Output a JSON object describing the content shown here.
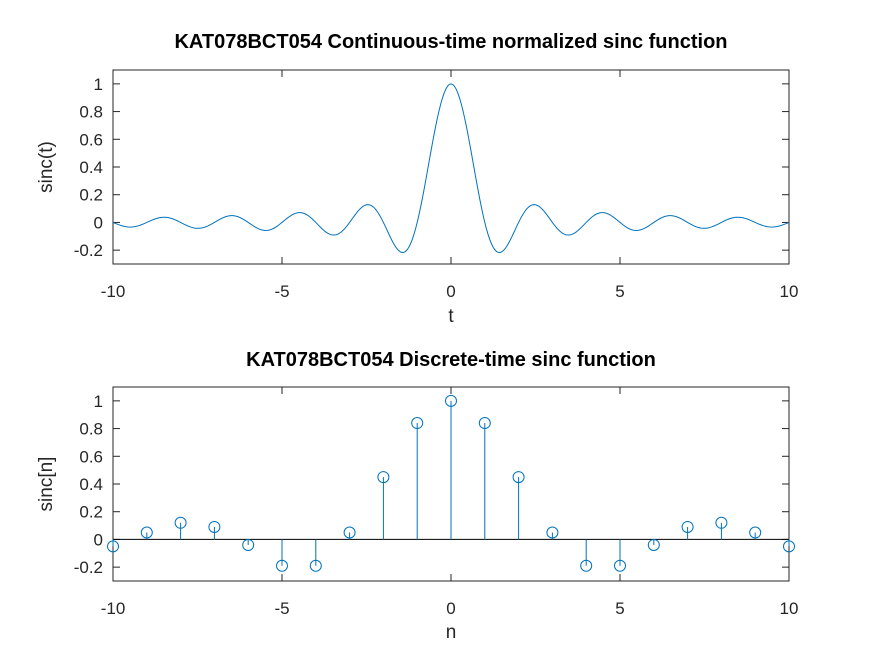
{
  "colors": {
    "series": "#0072bd",
    "axes": "#262626",
    "background": "#ffffff"
  },
  "chart_data": [
    {
      "type": "line",
      "title": "KAT078BCT054 Continuous-time normalized sinc function",
      "xlabel": "t",
      "ylabel": "sinc(t)",
      "xlim": [
        -10,
        10
      ],
      "ylim": [
        -0.3,
        1.1
      ],
      "xticks": [
        -10,
        -5,
        0,
        5,
        10
      ],
      "yticks": [
        -0.2,
        0,
        0.2,
        0.4,
        0.6,
        0.8,
        1
      ],
      "xtick_labels": [
        "-10",
        "-5",
        "0",
        "5",
        "10"
      ],
      "ytick_labels": [
        "-0.2",
        "0",
        "0.2",
        "0.4",
        "0.6",
        "0.8",
        "1"
      ],
      "function": "sin(pi*t)/(pi*t)",
      "sample_step": 0.05,
      "grid": false,
      "legend": "none"
    },
    {
      "type": "stem",
      "title": "KAT078BCT054 Discrete-time sinc function",
      "xlabel": "n",
      "ylabel": "sinc[n]",
      "xlim": [
        -10,
        10
      ],
      "ylim": [
        -0.3,
        1.1
      ],
      "xticks": [
        -10,
        -5,
        0,
        5,
        10
      ],
      "yticks": [
        -0.2,
        0,
        0.2,
        0.4,
        0.6,
        0.8,
        1
      ],
      "xtick_labels": [
        "-10",
        "-5",
        "0",
        "5",
        "10"
      ],
      "ytick_labels": [
        "-0.2",
        "0",
        "0.2",
        "0.4",
        "0.6",
        "0.8",
        "1"
      ],
      "x": [
        -10,
        -9,
        -8,
        -7,
        -6,
        -5,
        -4,
        -3,
        -2,
        -1,
        0,
        1,
        2,
        3,
        4,
        5,
        6,
        7,
        8,
        9,
        10
      ],
      "y": [
        -0.05,
        0.05,
        0.12,
        0.09,
        -0.04,
        -0.19,
        -0.19,
        0.05,
        0.45,
        0.84,
        1.0,
        0.84,
        0.45,
        0.05,
        -0.19,
        -0.19,
        -0.04,
        0.09,
        0.12,
        0.05,
        -0.05
      ],
      "grid": false,
      "legend": "none"
    }
  ]
}
